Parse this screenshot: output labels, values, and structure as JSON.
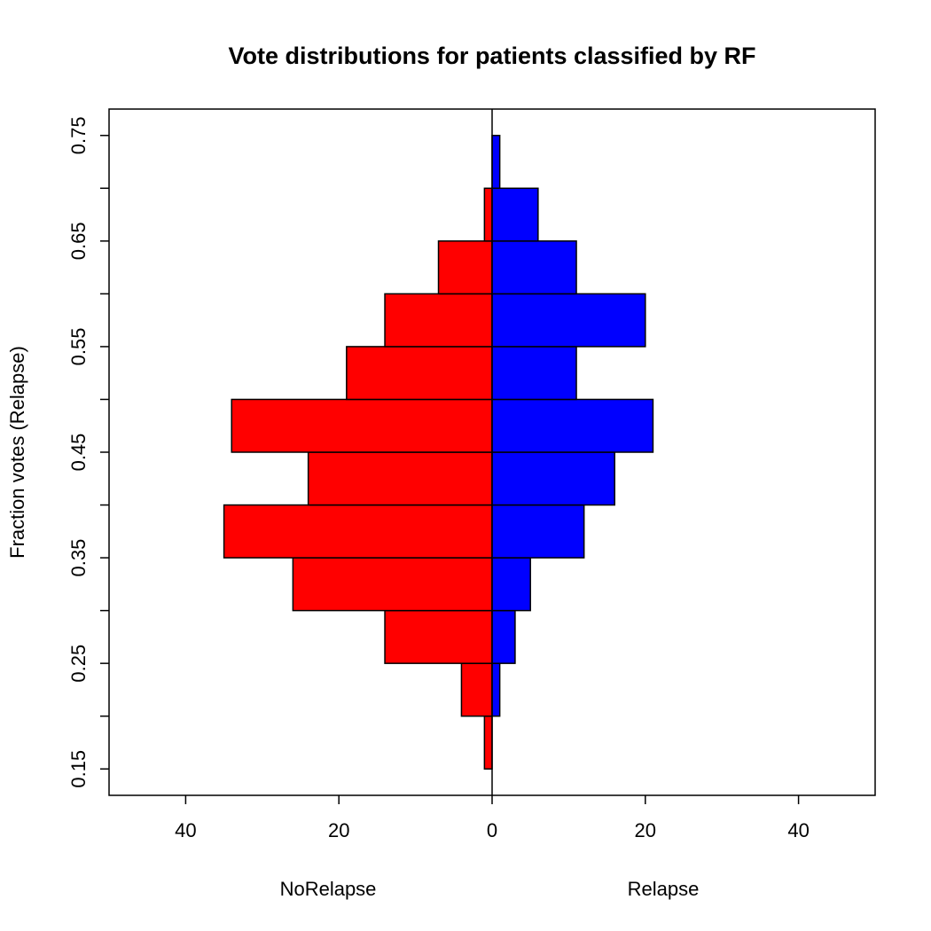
{
  "chart_data": {
    "type": "bar",
    "orientation": "horizontal-back-to-back",
    "title": "Vote distributions for patients classified by RF",
    "ylabel": "Fraction votes (Relapse)",
    "left_label": "NoRelapse",
    "right_label": "Relapse",
    "bin_width": 0.05,
    "ylim": [
      0.125,
      0.775
    ],
    "xlim": [
      -50,
      50
    ],
    "x_ticks": [
      -40,
      -20,
      0,
      20,
      40
    ],
    "x_tick_labels": [
      "40",
      "20",
      "0",
      "20",
      "40"
    ],
    "y_ticks_labeled": [
      0.15,
      0.25,
      0.35,
      0.45,
      0.55,
      0.65,
      0.75
    ],
    "y_tick_labels": [
      "0.15",
      "0.25",
      "0.35",
      "0.45",
      "0.55",
      "0.65",
      "0.75"
    ],
    "y_ticks_minor": [
      0.2,
      0.3,
      0.4,
      0.5,
      0.6,
      0.7
    ],
    "grid": false,
    "legend": "none",
    "series": [
      {
        "name": "NoRelapse",
        "color": "#ff0000",
        "bins": [
          {
            "from": 0.15,
            "to": 0.2,
            "count": 1
          },
          {
            "from": 0.2,
            "to": 0.25,
            "count": 4
          },
          {
            "from": 0.25,
            "to": 0.3,
            "count": 14
          },
          {
            "from": 0.3,
            "to": 0.35,
            "count": 26
          },
          {
            "from": 0.35,
            "to": 0.4,
            "count": 35
          },
          {
            "from": 0.4,
            "to": 0.45,
            "count": 24
          },
          {
            "from": 0.45,
            "to": 0.5,
            "count": 34
          },
          {
            "from": 0.5,
            "to": 0.55,
            "count": 19
          },
          {
            "from": 0.55,
            "to": 0.6,
            "count": 14
          },
          {
            "from": 0.6,
            "to": 0.65,
            "count": 7
          },
          {
            "from": 0.65,
            "to": 0.7,
            "count": 1
          }
        ]
      },
      {
        "name": "Relapse",
        "color": "#0000ff",
        "bins": [
          {
            "from": 0.2,
            "to": 0.25,
            "count": 1
          },
          {
            "from": 0.25,
            "to": 0.3,
            "count": 3
          },
          {
            "from": 0.3,
            "to": 0.35,
            "count": 5
          },
          {
            "from": 0.35,
            "to": 0.4,
            "count": 12
          },
          {
            "from": 0.4,
            "to": 0.45,
            "count": 16
          },
          {
            "from": 0.45,
            "to": 0.5,
            "count": 21
          },
          {
            "from": 0.5,
            "to": 0.55,
            "count": 11
          },
          {
            "from": 0.55,
            "to": 0.6,
            "count": 20
          },
          {
            "from": 0.6,
            "to": 0.65,
            "count": 11
          },
          {
            "from": 0.65,
            "to": 0.7,
            "count": 6
          },
          {
            "from": 0.7,
            "to": 0.75,
            "count": 1
          }
        ]
      }
    ]
  }
}
